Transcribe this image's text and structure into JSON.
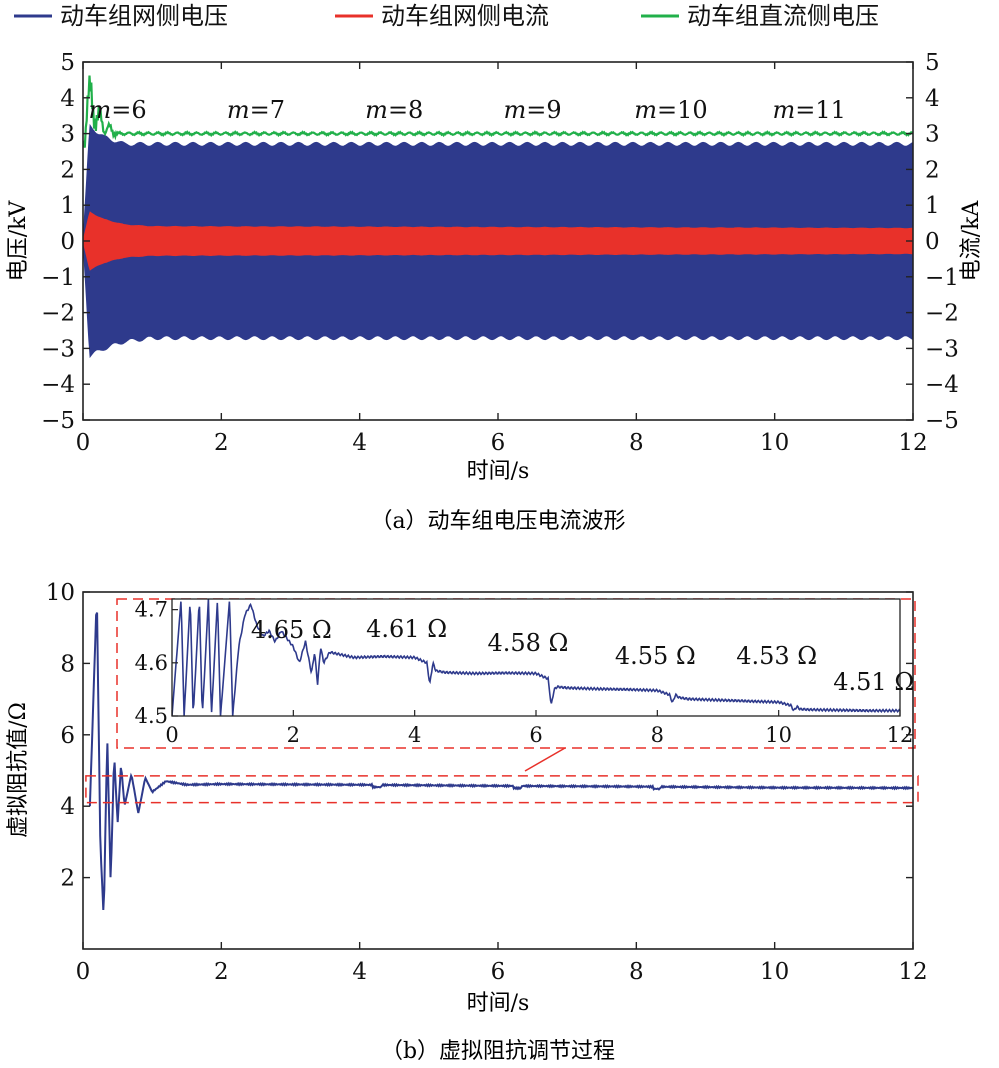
{
  "chart_data": [
    {
      "type": "line",
      "caption": "（a）动车组电压电流波形",
      "xlabel": "时间/s",
      "ylabel_left": "电压/kV",
      "ylabel_right": "电流/kA",
      "xlim": [
        0,
        12
      ],
      "ylim_left": [
        -5,
        5
      ],
      "ylim_right": [
        -5,
        5
      ],
      "x_ticks": [
        "0",
        "2",
        "4",
        "6",
        "8",
        "10",
        "12"
      ],
      "y_ticks": [
        "5",
        "4",
        "3",
        "2",
        "1",
        "0",
        "−1",
        "−2",
        "−3",
        "−4",
        "−5"
      ],
      "legend_position": "top",
      "grid": false,
      "series": [
        {
          "name": "动车组网侧电压",
          "color": "#2e3a8c",
          "axis": "left",
          "kind": "ac-envelope",
          "x": [
            0,
            0.1,
            0.3,
            0.6,
            1,
            12
          ],
          "amplitude_upper": [
            0,
            3.2,
            2.9,
            2.7,
            2.7,
            2.7
          ],
          "amplitude_lower": [
            0,
            -3.2,
            -3.0,
            -2.8,
            -2.7,
            -2.7
          ]
        },
        {
          "name": "动车组网侧电流",
          "color": "#e8312a",
          "axis": "right",
          "kind": "ac-envelope",
          "x": [
            0,
            0.1,
            0.3,
            0.6,
            1,
            12
          ],
          "amplitude_upper": [
            0,
            0.8,
            0.6,
            0.45,
            0.4,
            0.35
          ],
          "amplitude_lower": [
            0,
            -0.8,
            -0.6,
            -0.45,
            -0.4,
            -0.35
          ]
        },
        {
          "name": "动车组直流侧电压",
          "color": "#21b04a",
          "axis": "left",
          "kind": "line",
          "x": [
            0,
            0.05,
            0.1,
            0.2,
            0.3,
            0.5,
            1,
            12
          ],
          "values": [
            2.8,
            4.0,
            3.9,
            3.5,
            3.2,
            3.0,
            3.0,
            3.0
          ]
        }
      ],
      "annotations": [
        {
          "text_italic": "m",
          "text": "=6",
          "x": 0.5
        },
        {
          "text_italic": "m",
          "text": "=7",
          "x": 2.5
        },
        {
          "text_italic": "m",
          "text": "=8",
          "x": 4.5
        },
        {
          "text_italic": "m",
          "text": "=9",
          "x": 6.5
        },
        {
          "text_italic": "m",
          "text": "=10",
          "x": 8.5
        },
        {
          "text_italic": "m",
          "text": "=11",
          "x": 10.5
        }
      ]
    },
    {
      "type": "line",
      "caption": "（b）虚拟阻抗调节过程",
      "xlabel": "时间/s",
      "ylabel": "虚拟阻抗值/Ω",
      "xlim": [
        0,
        12
      ],
      "ylim": [
        0,
        10
      ],
      "x_ticks": [
        "0",
        "2",
        "4",
        "6",
        "8",
        "10",
        "12"
      ],
      "y_ticks": [
        "10",
        "8",
        "6",
        "4",
        "2"
      ],
      "grid": false,
      "series": [
        {
          "name": "虚拟阻抗值",
          "color": "#2e3a8c",
          "x": [
            0.1,
            0.2,
            0.25,
            0.3,
            0.35,
            0.4,
            0.45,
            0.5,
            0.55,
            0.6,
            0.7,
            0.8,
            0.9,
            1.0,
            1.2,
            1.5,
            2,
            4,
            6,
            8,
            10,
            12
          ],
          "values": [
            4.0,
            10.0,
            3.0,
            0.8,
            6.0,
            1.8,
            5.5,
            3.5,
            5.2,
            4.0,
            4.9,
            3.8,
            4.8,
            4.4,
            4.7,
            4.6,
            4.62,
            4.6,
            4.57,
            4.55,
            4.52,
            4.51
          ]
        }
      ],
      "highlight_box": {
        "x": [
          0.1,
          12
        ],
        "y": [
          4.1,
          4.85
        ],
        "color": "#e8312a",
        "style": "dashed"
      },
      "inset": {
        "xlim": [
          0,
          12
        ],
        "ylim": [
          4.5,
          4.72
        ],
        "x_ticks": [
          "0",
          "2",
          "4",
          "6",
          "8",
          "10",
          "12"
        ],
        "y_ticks": [
          "4.7",
          "4.6",
          "4.5"
        ],
        "series": {
          "color": "#2e3a8c",
          "x": [
            0.0,
            0.15,
            0.2,
            0.3,
            0.35,
            0.45,
            0.5,
            0.6,
            0.65,
            0.75,
            0.8,
            0.95,
            1.0,
            1.1,
            1.2,
            1.3,
            1.4,
            1.5,
            1.6,
            1.7,
            1.8,
            2.0,
            2.1,
            2.2,
            2.3,
            2.35,
            2.4,
            2.45,
            2.5,
            2.6,
            2.8,
            3.0,
            3.5,
            4.0,
            4.2,
            4.25,
            4.3,
            4.35,
            4.5,
            5.0,
            5.5,
            6.0,
            6.2,
            6.25,
            6.3,
            6.35,
            6.5,
            7.0,
            7.5,
            8.0,
            8.2,
            8.25,
            8.3,
            8.35,
            8.5,
            9.0,
            9.5,
            10.0,
            10.2,
            10.25,
            10.3,
            10.35,
            10.5,
            11.0,
            11.5,
            12.0
          ],
          "values": [
            4.5,
            4.72,
            4.5,
            4.72,
            4.5,
            4.72,
            4.5,
            4.72,
            4.5,
            4.72,
            4.5,
            4.72,
            4.5,
            4.63,
            4.69,
            4.71,
            4.67,
            4.65,
            4.66,
            4.64,
            4.66,
            4.63,
            4.6,
            4.64,
            4.58,
            4.62,
            4.56,
            4.63,
            4.6,
            4.62,
            4.615,
            4.61,
            4.612,
            4.61,
            4.6,
            4.56,
            4.6,
            4.585,
            4.582,
            4.58,
            4.581,
            4.58,
            4.57,
            4.52,
            4.55,
            4.555,
            4.553,
            4.551,
            4.55,
            4.548,
            4.54,
            4.525,
            4.54,
            4.535,
            4.532,
            4.53,
            4.528,
            4.526,
            4.52,
            4.51,
            4.518,
            4.513,
            4.512,
            4.511,
            4.51,
            4.51
          ]
        },
        "annotations": [
          {
            "text": "4.65 Ω",
            "x": 1.3
          },
          {
            "text": "4.61 Ω",
            "x": 3.2
          },
          {
            "text": "4.58 Ω",
            "x": 5.2
          },
          {
            "text": "4.55 Ω",
            "x": 7.3
          },
          {
            "text": "4.53 Ω",
            "x": 9.3
          },
          {
            "text": "4.51 Ω",
            "x": 10.9
          }
        ]
      }
    }
  ]
}
